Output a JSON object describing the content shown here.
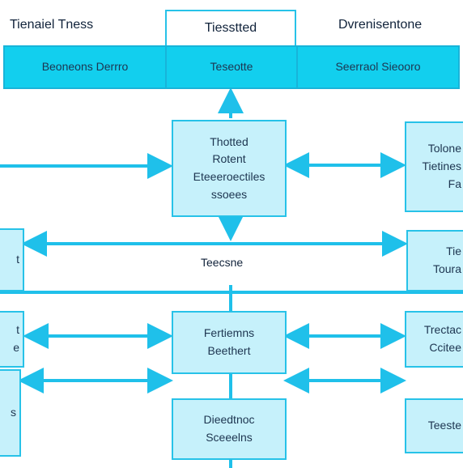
{
  "header": {
    "left_title": "Tienaiel Tness",
    "center_title": "Tiesstted",
    "right_title": "Dvrenisentone"
  },
  "banner": {
    "left": "Beoneons Derrro",
    "center": "Teseotte",
    "right": "Seerraol Sieooro"
  },
  "nodes": {
    "top_center": [
      "Thotted",
      "Rotent",
      "Eteeeroectiles",
      "ssoees"
    ],
    "top_right": [
      "Tolone",
      "Tietines",
      "Fa"
    ],
    "mid_left": "t",
    "mid_right": [
      "Tie",
      "Toura"
    ],
    "mid_label": "Teecsne",
    "row3_left": [
      "t",
      "e"
    ],
    "row3_center": [
      "Fertiemns",
      "Beethert"
    ],
    "row3_right": [
      "Trectac",
      "Ccitee"
    ],
    "row4_left": "s",
    "row4_center": [
      "Dieedtnoc",
      "Sceeelns"
    ],
    "row4_right": "Teeste"
  },
  "colors": {
    "box_fill": "#c6f1fb",
    "box_border": "#27c2e8",
    "banner_fill": "#12cfee",
    "arrow": "#1fc0ea"
  }
}
